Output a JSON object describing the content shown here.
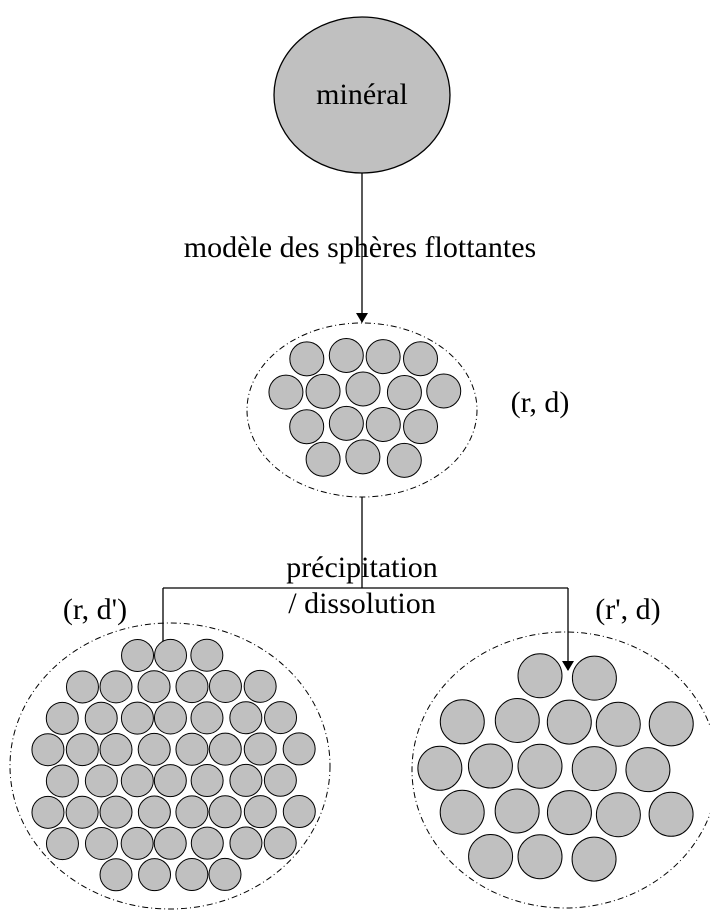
{
  "nodes": {
    "mineral": "minéral",
    "model": "modèle des sphères flottantes",
    "middle": "(r, d)",
    "left": "(r, d')",
    "right": "(r', d)"
  },
  "process": {
    "line1": "précipitation",
    "line2": "/ dissolution"
  }
}
